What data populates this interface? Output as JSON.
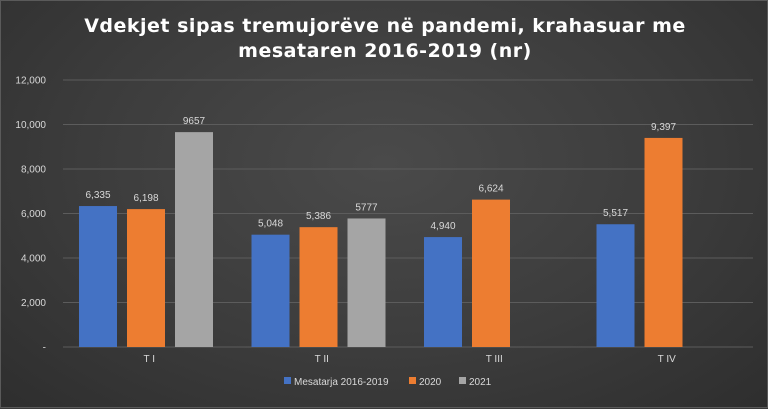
{
  "chart_data": {
    "type": "bar",
    "title_lines": [
      "Vdekjet sipas tremujorëve në pandemi, krahasuar me",
      "mesataren 2016-2019 (nr)"
    ],
    "categories": [
      "T I",
      "T II",
      "T III",
      "T IV"
    ],
    "series": [
      {
        "name": "Mesatarja 2016-2019",
        "color": "#4472c4",
        "values": [
          6335,
          5048,
          4940,
          5517
        ],
        "labels": [
          "6,335",
          "5,048",
          "4,940",
          "5,517"
        ]
      },
      {
        "name": "2020",
        "color": "#ed7d31",
        "values": [
          6198,
          5386,
          6624,
          9397
        ],
        "labels": [
          "6,198",
          "5,386",
          "6,624",
          "9,397"
        ]
      },
      {
        "name": "2021",
        "color": "#a5a5a5",
        "values": [
          9657,
          5777,
          null,
          null
        ],
        "labels": [
          "9657",
          "5777",
          null,
          null
        ]
      }
    ],
    "ylim": [
      0,
      12000
    ],
    "yticks": [
      0,
      2000,
      4000,
      6000,
      8000,
      10000,
      12000
    ],
    "ytick_labels": [
      "-",
      "2,000",
      "4,000",
      "6,000",
      "8,000",
      "10,000",
      "12,000"
    ],
    "grid": true,
    "legend_position": "bottom"
  }
}
